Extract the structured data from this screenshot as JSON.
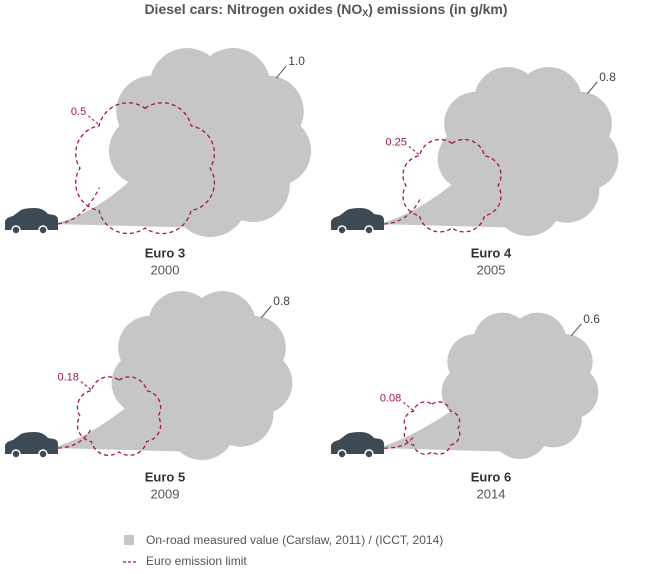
{
  "chart_data": {
    "type": "cloud",
    "title": [
      "Diesel cars: Nitrogen oxides (NO",
      "X",
      ") emissions (in g/km)"
    ],
    "categories": [
      "Euro 3",
      "Euro 4",
      "Euro 5",
      "Euro 6"
    ],
    "years": [
      "2000",
      "2005",
      "2009",
      "2014"
    ],
    "series": [
      {
        "name": "On-road measured value (Carslaw, 2011) / (ICCT, 2014)",
        "color": "#c6c6c6",
        "values": [
          1.0,
          0.8,
          0.8,
          0.6
        ],
        "value_labels": [
          "1.0",
          "0.8",
          "0.8",
          "0.6"
        ]
      },
      {
        "name": "Euro emission limit",
        "color": "#a3174d",
        "values": [
          0.5,
          0.25,
          0.18,
          0.08
        ]
      }
    ]
  }
}
